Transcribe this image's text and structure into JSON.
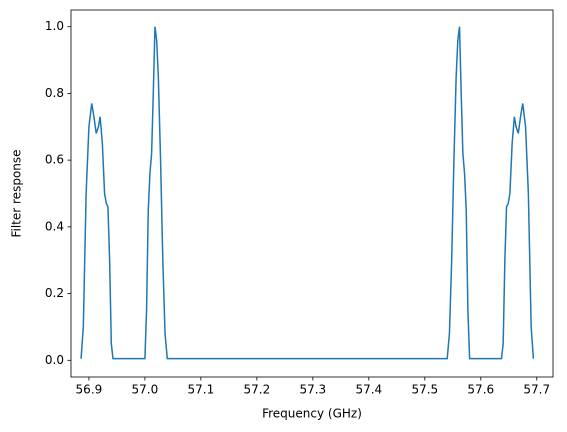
{
  "chart_data": {
    "type": "line",
    "xlabel": "Frequency (GHz)",
    "ylabel": "Filter response",
    "x": [
      56.886,
      56.89,
      56.895,
      56.9,
      56.905,
      56.909,
      56.913,
      56.917,
      56.92,
      56.924,
      56.928,
      56.931,
      56.934,
      56.937,
      56.94,
      56.943,
      57.0,
      57.003,
      57.006,
      57.009,
      57.012,
      57.015,
      57.018,
      57.021,
      57.024,
      57.028,
      57.032,
      57.036,
      57.04,
      57.54,
      57.544,
      57.548,
      57.552,
      57.556,
      57.559,
      57.562,
      57.565,
      57.568,
      57.571,
      57.574,
      57.577,
      57.58,
      57.637,
      57.64,
      57.643,
      57.646,
      57.649,
      57.652,
      57.656,
      57.66,
      57.663,
      57.667,
      57.671,
      57.675,
      57.68,
      57.685,
      57.69,
      57.694
    ],
    "series": [
      {
        "color": "#1f77b4",
        "values": [
          0.005,
          0.1,
          0.5,
          0.7,
          0.77,
          0.73,
          0.68,
          0.7,
          0.73,
          0.65,
          0.5,
          0.47,
          0.46,
          0.3,
          0.05,
          0.005,
          0.005,
          0.15,
          0.45,
          0.56,
          0.62,
          0.8,
          1.0,
          0.96,
          0.85,
          0.6,
          0.3,
          0.08,
          0.005,
          0.005,
          0.08,
          0.3,
          0.6,
          0.85,
          0.96,
          1.0,
          0.8,
          0.62,
          0.56,
          0.45,
          0.15,
          0.005,
          0.005,
          0.05,
          0.3,
          0.46,
          0.47,
          0.5,
          0.65,
          0.73,
          0.7,
          0.68,
          0.73,
          0.77,
          0.7,
          0.5,
          0.1,
          0.005
        ]
      }
    ],
    "xlim": [
      56.868,
      57.729
    ],
    "ylim": [
      -0.05,
      1.05
    ],
    "xticks": [
      56.9,
      {
        "value": 57,
        "label": "57.0"
      },
      57.1,
      57.2,
      57.3,
      57.4,
      57.5,
      57.6,
      57.7
    ],
    "yticks": [
      {
        "value": 0,
        "label": "0.0"
      },
      0.2,
      0.4,
      0.6,
      0.8,
      {
        "value": 1,
        "label": "1.0"
      }
    ]
  }
}
